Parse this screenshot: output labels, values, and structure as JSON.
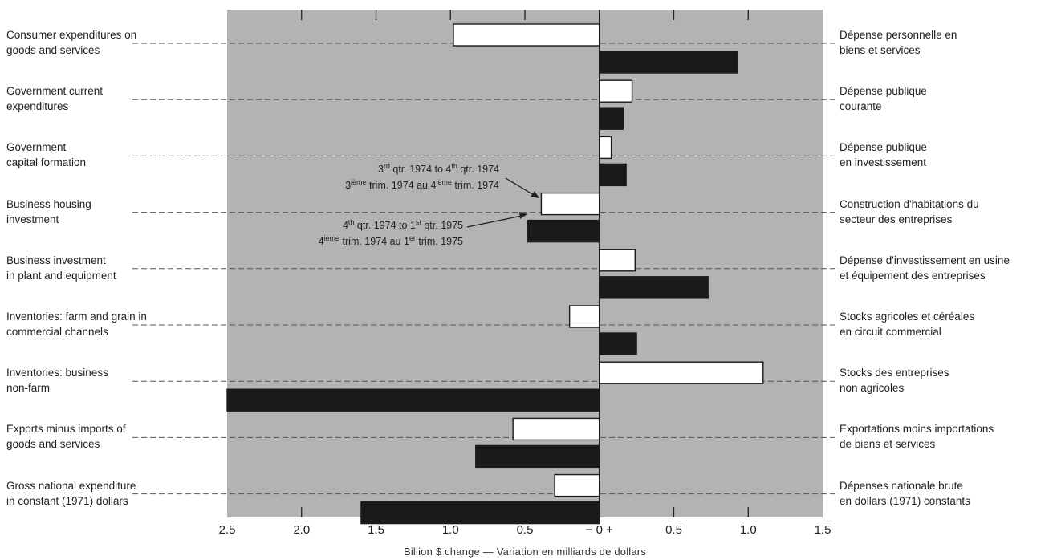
{
  "chart_data": {
    "type": "bar",
    "orientation": "horizontal",
    "categories_left": [
      "Consumer expenditures on\ngoods and services",
      "Government current\nexpenditures",
      "Government\ncapital formation",
      "Business housing\ninvestment",
      "Business investment\nin plant and equipment",
      "Inventories: farm and grain in\ncommercial channels",
      "Inventories: business\nnon-farm",
      "Exports minus imports of\ngoods and services",
      "Gross national expenditure\nin constant (1971) dollars"
    ],
    "categories_right": [
      "Dépense personnelle en\nbiens et services",
      "Dépense publique\ncourante",
      "Dépense publique\nen investissement",
      "Construction d'habitations du\nsecteur des entreprises",
      "Dépense d'investissement en usine\net équipement des entreprises",
      "Stocks agricoles et céréales\nen circuit commercial",
      "Stocks des entreprises\nnon agricoles",
      "Exportations moins importations\nde biens et services",
      "Dépenses nationale brute\nen dollars (1971) constants"
    ],
    "series": [
      {
        "color": "#ffffff",
        "values": [
          -0.98,
          0.22,
          0.08,
          -0.39,
          0.24,
          -0.2,
          1.1,
          -0.58,
          -0.3
        ]
      },
      {
        "color": "#1a1a1a",
        "values": [
          0.93,
          0.16,
          0.18,
          -0.48,
          0.73,
          0.25,
          -2.5,
          -0.83,
          -1.6
        ]
      }
    ],
    "annotations": [
      {
        "line1_parts": [
          "3",
          "rd",
          " qtr. 1974 to 4",
          "th",
          " qtr. 1974"
        ],
        "line2_parts": [
          "3",
          "ième",
          " trim. 1974 au 4",
          "ième",
          " trim. 1974"
        ]
      },
      {
        "line1_parts": [
          "4",
          "th",
          " qtr. 1974 to 1",
          "st",
          " qtr. 1975"
        ],
        "line2_parts": [
          "4",
          "ième",
          " trim. 1974 au 1",
          "er",
          " trim. 1975"
        ]
      }
    ],
    "tick_labels": [
      "2.5",
      "2.0",
      "1.5",
      "1.0",
      "0.5",
      "− 0 +",
      "0.5",
      "1.0",
      "1.5"
    ],
    "xlim": [
      -2.5,
      1.5
    ],
    "xlabel": "Billion $ change — Variation en milliards de dollars",
    "background_color": "#b3b3b3",
    "grid": false
  }
}
